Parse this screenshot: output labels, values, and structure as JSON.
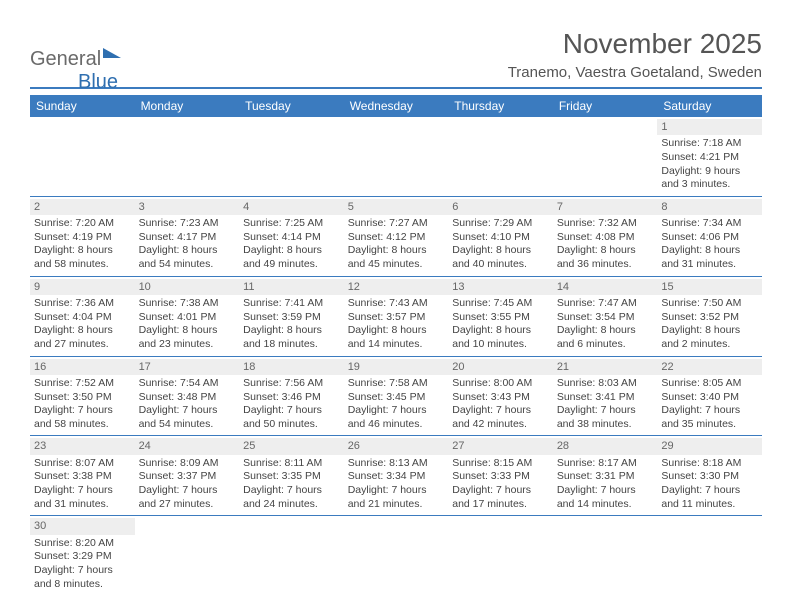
{
  "logo": {
    "part1": "General",
    "part2": "Blue"
  },
  "header": {
    "title": "November 2025",
    "subtitle": "Tranemo, Vaestra Goetaland, Sweden"
  },
  "calendar": {
    "columns": [
      "Sunday",
      "Monday",
      "Tuesday",
      "Wednesday",
      "Thursday",
      "Friday",
      "Saturday"
    ],
    "header_bg": "#3b7bbf",
    "header_fg": "#ffffff",
    "daynum_bg": "#eeeeee",
    "border_color": "#3b7bbf",
    "weeks": [
      [
        {
          "empty": true
        },
        {
          "empty": true
        },
        {
          "empty": true
        },
        {
          "empty": true
        },
        {
          "empty": true
        },
        {
          "empty": true
        },
        {
          "day": "1",
          "sunrise": "Sunrise: 7:18 AM",
          "sunset": "Sunset: 4:21 PM",
          "daylight1": "Daylight: 9 hours",
          "daylight2": "and 3 minutes."
        }
      ],
      [
        {
          "day": "2",
          "sunrise": "Sunrise: 7:20 AM",
          "sunset": "Sunset: 4:19 PM",
          "daylight1": "Daylight: 8 hours",
          "daylight2": "and 58 minutes."
        },
        {
          "day": "3",
          "sunrise": "Sunrise: 7:23 AM",
          "sunset": "Sunset: 4:17 PM",
          "daylight1": "Daylight: 8 hours",
          "daylight2": "and 54 minutes."
        },
        {
          "day": "4",
          "sunrise": "Sunrise: 7:25 AM",
          "sunset": "Sunset: 4:14 PM",
          "daylight1": "Daylight: 8 hours",
          "daylight2": "and 49 minutes."
        },
        {
          "day": "5",
          "sunrise": "Sunrise: 7:27 AM",
          "sunset": "Sunset: 4:12 PM",
          "daylight1": "Daylight: 8 hours",
          "daylight2": "and 45 minutes."
        },
        {
          "day": "6",
          "sunrise": "Sunrise: 7:29 AM",
          "sunset": "Sunset: 4:10 PM",
          "daylight1": "Daylight: 8 hours",
          "daylight2": "and 40 minutes."
        },
        {
          "day": "7",
          "sunrise": "Sunrise: 7:32 AM",
          "sunset": "Sunset: 4:08 PM",
          "daylight1": "Daylight: 8 hours",
          "daylight2": "and 36 minutes."
        },
        {
          "day": "8",
          "sunrise": "Sunrise: 7:34 AM",
          "sunset": "Sunset: 4:06 PM",
          "daylight1": "Daylight: 8 hours",
          "daylight2": "and 31 minutes."
        }
      ],
      [
        {
          "day": "9",
          "sunrise": "Sunrise: 7:36 AM",
          "sunset": "Sunset: 4:04 PM",
          "daylight1": "Daylight: 8 hours",
          "daylight2": "and 27 minutes."
        },
        {
          "day": "10",
          "sunrise": "Sunrise: 7:38 AM",
          "sunset": "Sunset: 4:01 PM",
          "daylight1": "Daylight: 8 hours",
          "daylight2": "and 23 minutes."
        },
        {
          "day": "11",
          "sunrise": "Sunrise: 7:41 AM",
          "sunset": "Sunset: 3:59 PM",
          "daylight1": "Daylight: 8 hours",
          "daylight2": "and 18 minutes."
        },
        {
          "day": "12",
          "sunrise": "Sunrise: 7:43 AM",
          "sunset": "Sunset: 3:57 PM",
          "daylight1": "Daylight: 8 hours",
          "daylight2": "and 14 minutes."
        },
        {
          "day": "13",
          "sunrise": "Sunrise: 7:45 AM",
          "sunset": "Sunset: 3:55 PM",
          "daylight1": "Daylight: 8 hours",
          "daylight2": "and 10 minutes."
        },
        {
          "day": "14",
          "sunrise": "Sunrise: 7:47 AM",
          "sunset": "Sunset: 3:54 PM",
          "daylight1": "Daylight: 8 hours",
          "daylight2": "and 6 minutes."
        },
        {
          "day": "15",
          "sunrise": "Sunrise: 7:50 AM",
          "sunset": "Sunset: 3:52 PM",
          "daylight1": "Daylight: 8 hours",
          "daylight2": "and 2 minutes."
        }
      ],
      [
        {
          "day": "16",
          "sunrise": "Sunrise: 7:52 AM",
          "sunset": "Sunset: 3:50 PM",
          "daylight1": "Daylight: 7 hours",
          "daylight2": "and 58 minutes."
        },
        {
          "day": "17",
          "sunrise": "Sunrise: 7:54 AM",
          "sunset": "Sunset: 3:48 PM",
          "daylight1": "Daylight: 7 hours",
          "daylight2": "and 54 minutes."
        },
        {
          "day": "18",
          "sunrise": "Sunrise: 7:56 AM",
          "sunset": "Sunset: 3:46 PM",
          "daylight1": "Daylight: 7 hours",
          "daylight2": "and 50 minutes."
        },
        {
          "day": "19",
          "sunrise": "Sunrise: 7:58 AM",
          "sunset": "Sunset: 3:45 PM",
          "daylight1": "Daylight: 7 hours",
          "daylight2": "and 46 minutes."
        },
        {
          "day": "20",
          "sunrise": "Sunrise: 8:00 AM",
          "sunset": "Sunset: 3:43 PM",
          "daylight1": "Daylight: 7 hours",
          "daylight2": "and 42 minutes."
        },
        {
          "day": "21",
          "sunrise": "Sunrise: 8:03 AM",
          "sunset": "Sunset: 3:41 PM",
          "daylight1": "Daylight: 7 hours",
          "daylight2": "and 38 minutes."
        },
        {
          "day": "22",
          "sunrise": "Sunrise: 8:05 AM",
          "sunset": "Sunset: 3:40 PM",
          "daylight1": "Daylight: 7 hours",
          "daylight2": "and 35 minutes."
        }
      ],
      [
        {
          "day": "23",
          "sunrise": "Sunrise: 8:07 AM",
          "sunset": "Sunset: 3:38 PM",
          "daylight1": "Daylight: 7 hours",
          "daylight2": "and 31 minutes."
        },
        {
          "day": "24",
          "sunrise": "Sunrise: 8:09 AM",
          "sunset": "Sunset: 3:37 PM",
          "daylight1": "Daylight: 7 hours",
          "daylight2": "and 27 minutes."
        },
        {
          "day": "25",
          "sunrise": "Sunrise: 8:11 AM",
          "sunset": "Sunset: 3:35 PM",
          "daylight1": "Daylight: 7 hours",
          "daylight2": "and 24 minutes."
        },
        {
          "day": "26",
          "sunrise": "Sunrise: 8:13 AM",
          "sunset": "Sunset: 3:34 PM",
          "daylight1": "Daylight: 7 hours",
          "daylight2": "and 21 minutes."
        },
        {
          "day": "27",
          "sunrise": "Sunrise: 8:15 AM",
          "sunset": "Sunset: 3:33 PM",
          "daylight1": "Daylight: 7 hours",
          "daylight2": "and 17 minutes."
        },
        {
          "day": "28",
          "sunrise": "Sunrise: 8:17 AM",
          "sunset": "Sunset: 3:31 PM",
          "daylight1": "Daylight: 7 hours",
          "daylight2": "and 14 minutes."
        },
        {
          "day": "29",
          "sunrise": "Sunrise: 8:18 AM",
          "sunset": "Sunset: 3:30 PM",
          "daylight1": "Daylight: 7 hours",
          "daylight2": "and 11 minutes."
        }
      ],
      [
        {
          "day": "30",
          "sunrise": "Sunrise: 8:20 AM",
          "sunset": "Sunset: 3:29 PM",
          "daylight1": "Daylight: 7 hours",
          "daylight2": "and 8 minutes."
        },
        {
          "empty": true
        },
        {
          "empty": true
        },
        {
          "empty": true
        },
        {
          "empty": true
        },
        {
          "empty": true
        },
        {
          "empty": true
        }
      ]
    ]
  }
}
